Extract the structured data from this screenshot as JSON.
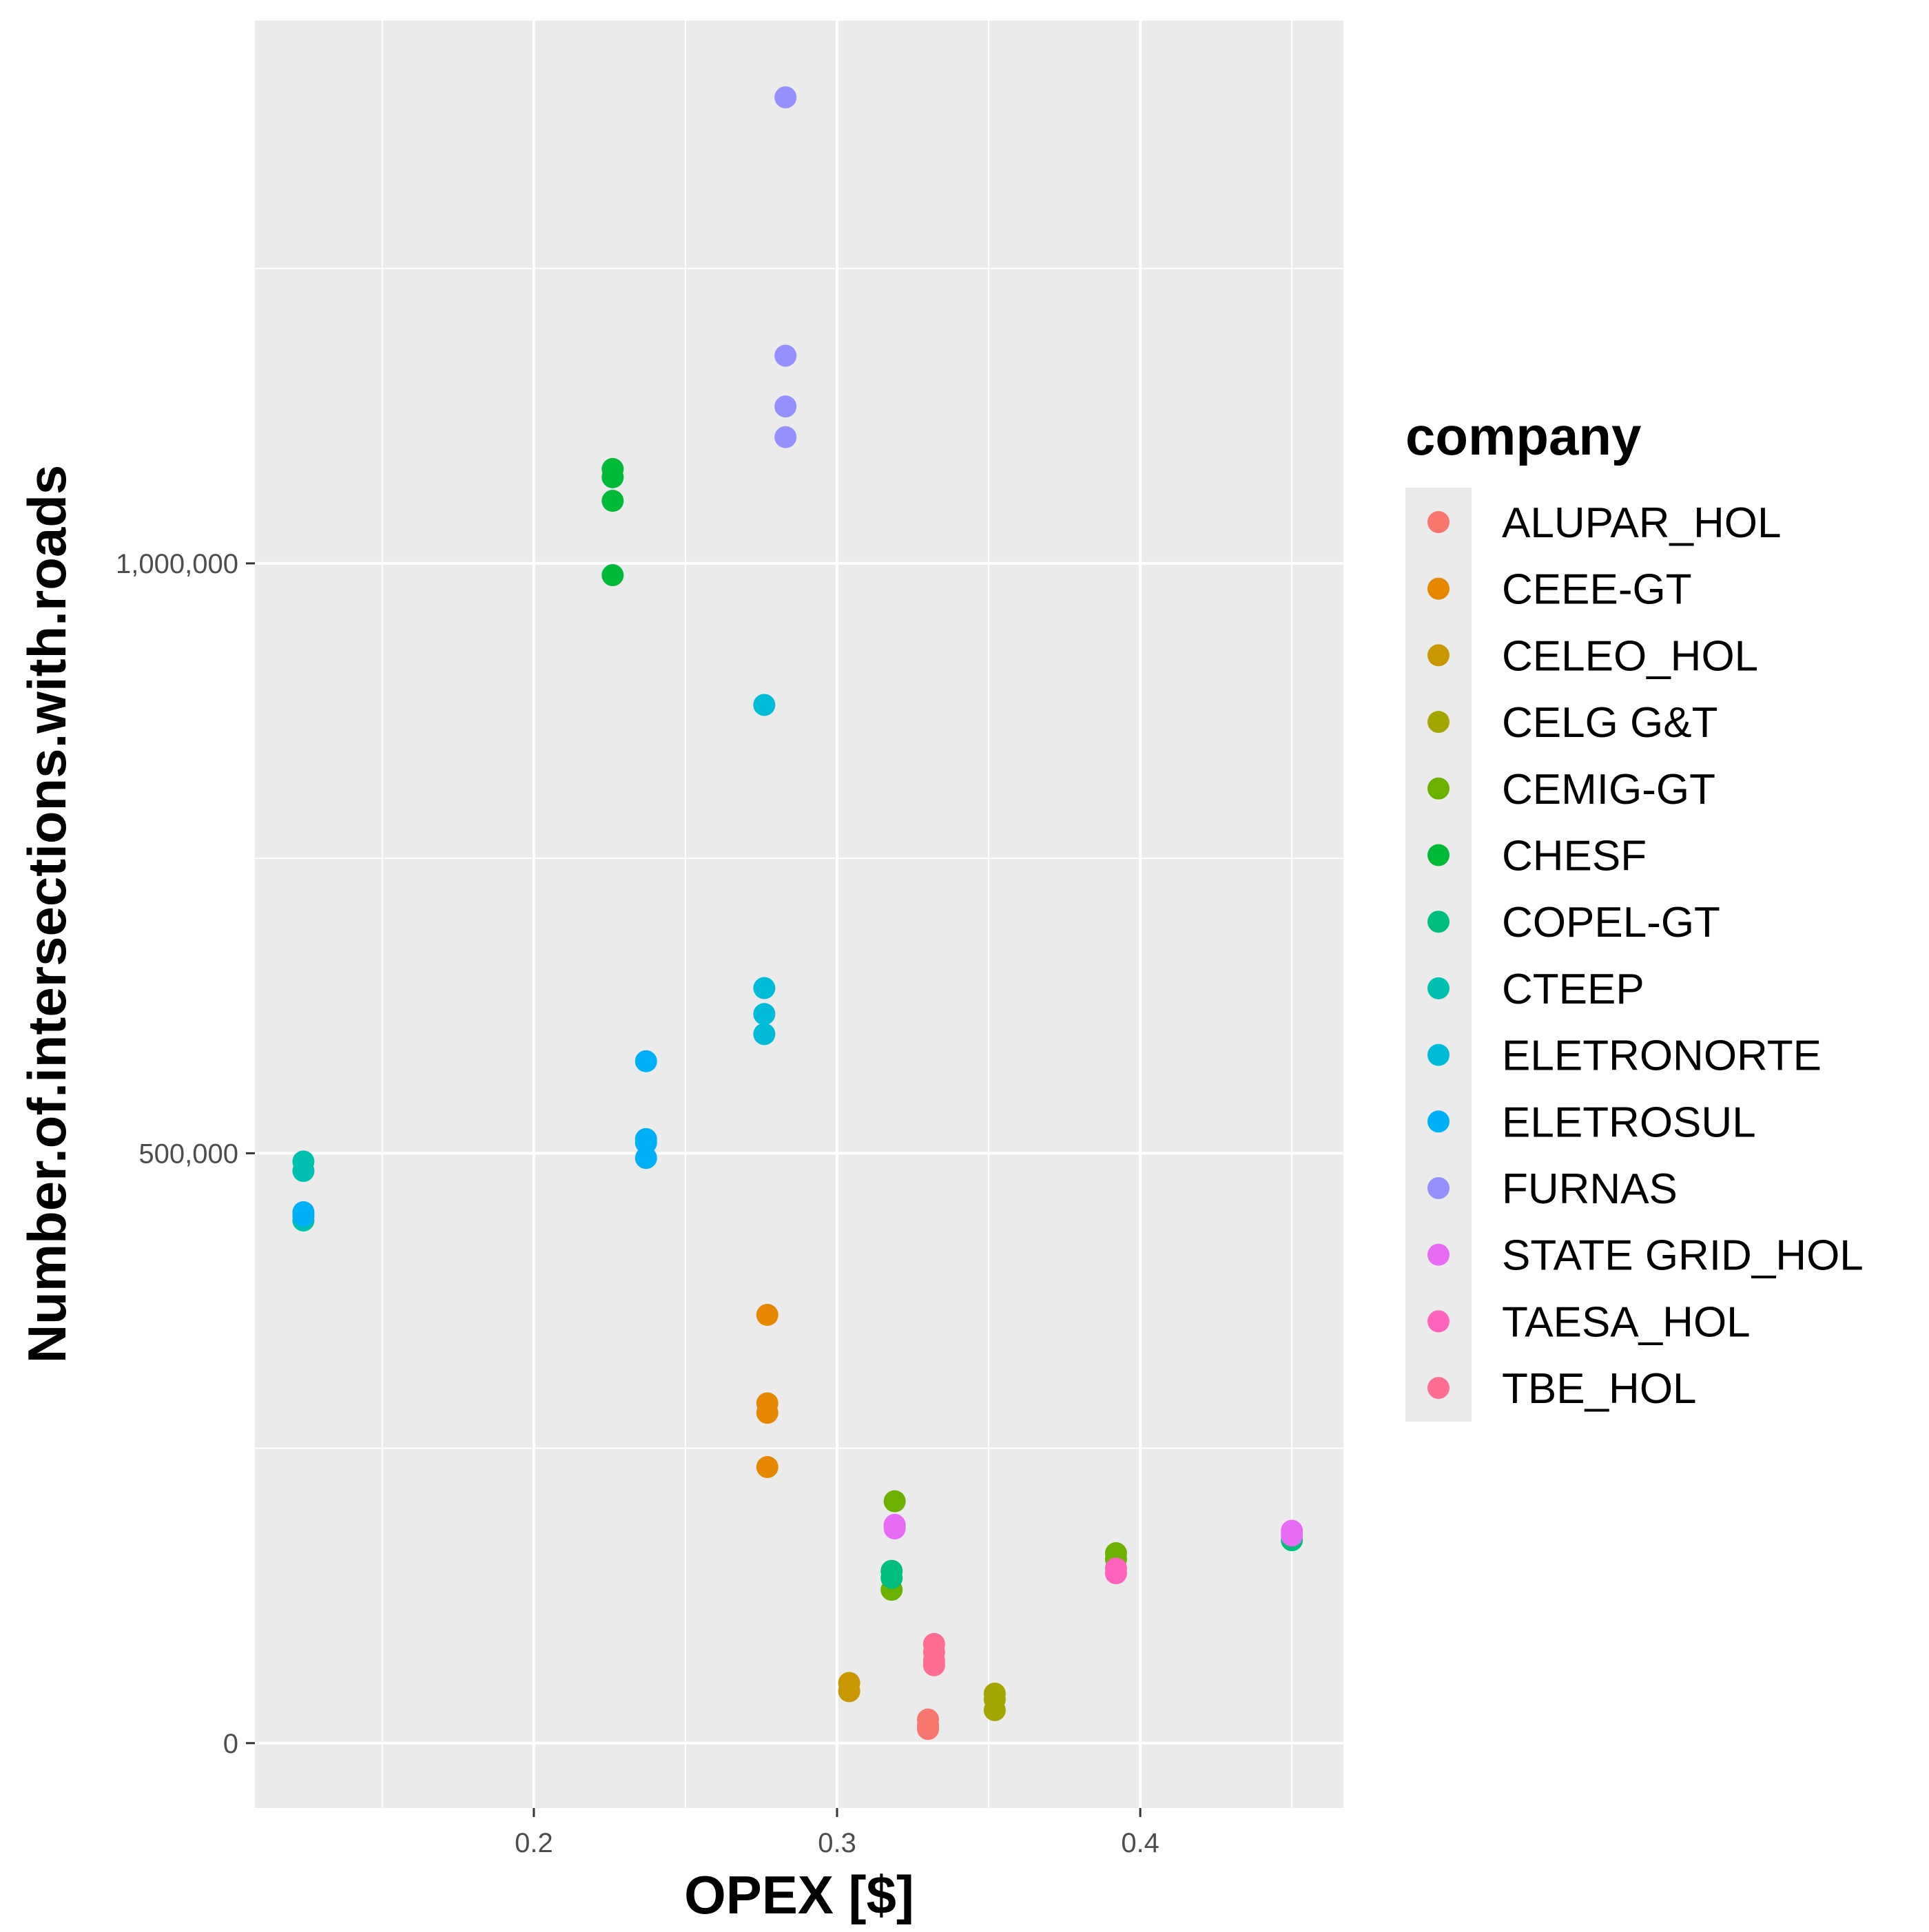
{
  "chart_data": {
    "type": "scatter",
    "title": "",
    "xlabel": "OPEX [$]",
    "ylabel": "Number.of.intersections.with.roads",
    "xlim": [
      0.108,
      0.467
    ],
    "ylim": [
      -55000,
      1460000
    ],
    "x_ticks": [
      0.2,
      0.3,
      0.4
    ],
    "x_tick_labels": [
      "0.2",
      "0.3",
      "0.4"
    ],
    "x_minor_ticks": [
      0.15,
      0.25,
      0.35,
      0.45
    ],
    "y_ticks": [
      0,
      500000,
      1000000
    ],
    "y_tick_labels": [
      "0",
      "500,000",
      "1,000,000"
    ],
    "y_minor_ticks": [
      250000,
      750000,
      1250000
    ],
    "grid": true,
    "legend_title": "company",
    "legend_position": "right",
    "series": [
      {
        "name": "ALUPAR_HOL",
        "color": "#F8766D",
        "points": [
          [
            0.33,
            20000
          ],
          [
            0.33,
            15000
          ],
          [
            0.33,
            12000
          ]
        ]
      },
      {
        "name": "CEEE-GT",
        "color": "#E58700",
        "points": [
          [
            0.277,
            363000
          ],
          [
            0.277,
            288000
          ],
          [
            0.277,
            280000
          ],
          [
            0.277,
            234000
          ]
        ]
      },
      {
        "name": "CELEO_HOL",
        "color": "#C99800",
        "points": [
          [
            0.304,
            51000
          ],
          [
            0.304,
            44000
          ]
        ]
      },
      {
        "name": "CELG G&T",
        "color": "#A3A500",
        "points": [
          [
            0.352,
            42000
          ],
          [
            0.352,
            37000
          ],
          [
            0.352,
            28000
          ]
        ]
      },
      {
        "name": "CEMIG-GT",
        "color": "#6BB100",
        "points": [
          [
            0.319,
            205000
          ],
          [
            0.319,
            184000
          ],
          [
            0.318,
            130000
          ],
          [
            0.392,
            161000
          ],
          [
            0.392,
            156000
          ]
        ]
      },
      {
        "name": "CHESF",
        "color": "#00BA38",
        "points": [
          [
            0.226,
            1080000
          ],
          [
            0.226,
            1073000
          ],
          [
            0.226,
            1053000
          ],
          [
            0.226,
            990000
          ]
        ]
      },
      {
        "name": "COPEL-GT",
        "color": "#00BF7D",
        "points": [
          [
            0.318,
            146000
          ],
          [
            0.318,
            140000
          ],
          [
            0.45,
            172000
          ]
        ]
      },
      {
        "name": "CTEEP",
        "color": "#00C0AF",
        "points": [
          [
            0.124,
            493000
          ],
          [
            0.124,
            485000
          ],
          [
            0.124,
            443000
          ]
        ]
      },
      {
        "name": "ELETRONORTE",
        "color": "#00BCD8",
        "points": [
          [
            0.276,
            880000
          ],
          [
            0.276,
            640000
          ],
          [
            0.276,
            618000
          ],
          [
            0.276,
            601000
          ]
        ]
      },
      {
        "name": "ELETROSUL",
        "color": "#00B0F6",
        "points": [
          [
            0.237,
            578000
          ],
          [
            0.237,
            512000
          ],
          [
            0.237,
            509000
          ],
          [
            0.237,
            496000
          ],
          [
            0.124,
            450000
          ],
          [
            0.124,
            447000
          ]
        ]
      },
      {
        "name": "FURNAS",
        "color": "#9590FF",
        "points": [
          [
            0.283,
            1395000
          ],
          [
            0.283,
            1176000
          ],
          [
            0.283,
            1133000
          ],
          [
            0.283,
            1107000
          ]
        ]
      },
      {
        "name": "STATE GRID_HOL",
        "color": "#E76BF3",
        "points": [
          [
            0.319,
            185000
          ],
          [
            0.319,
            182000
          ],
          [
            0.45,
            180000
          ],
          [
            0.45,
            176000
          ]
        ]
      },
      {
        "name": "TAESA_HOL",
        "color": "#FF62BC",
        "points": [
          [
            0.392,
            148000
          ],
          [
            0.392,
            144000
          ]
        ]
      },
      {
        "name": "TBE_HOL",
        "color": "#FF6C91",
        "points": [
          [
            0.332,
            84000
          ],
          [
            0.332,
            77000
          ],
          [
            0.332,
            70000
          ],
          [
            0.332,
            66000
          ]
        ]
      }
    ]
  }
}
